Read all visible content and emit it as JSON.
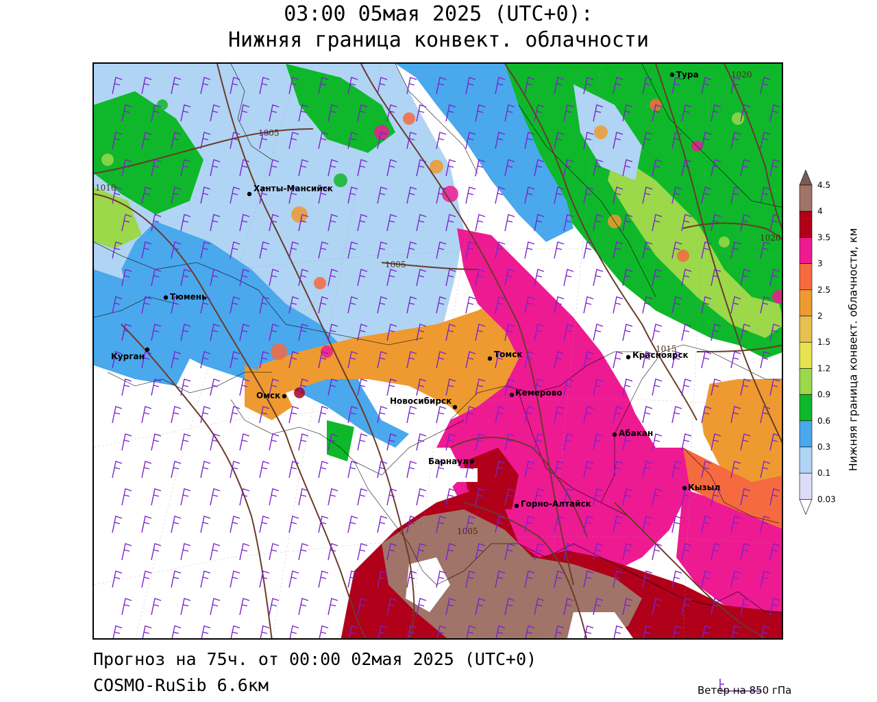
{
  "header": {
    "title_line1": "03:00 05мая 2025 (UTC+0):",
    "title_line2": "Нижняя граница конвект. облачности"
  },
  "footer": {
    "forecast": "Прогноз на 75ч. от 00:00 02мая 2025 (UTC+0)",
    "model": "COSMO-RuSib 6.6км",
    "wind_legend": "Ветер на 850 гПа"
  },
  "colorbar": {
    "label": "Нижняя граница конвект. облачности, км",
    "levels": [
      "0.03",
      "0.1",
      "0.3",
      "0.6",
      "0.9",
      "1.2",
      "1.5",
      "2",
      "2.5",
      "3",
      "3.5",
      "4",
      "4.5"
    ],
    "colors": [
      "#dcdcf8",
      "#b0d4f4",
      "#4aa8ec",
      "#0eb82a",
      "#9bd84a",
      "#e6e250",
      "#e6c050",
      "#ee9a30",
      "#f66a40",
      "#ee1a92",
      "#b0001a",
      "#a07468",
      "#7a5a52"
    ],
    "bottom_color": "#ffffff"
  },
  "map": {
    "cities": [
      {
        "name": "Тура",
        "lon_lat_label": "Тура"
      },
      {
        "name": "Ханты-Мансийск"
      },
      {
        "name": "Тюмень"
      },
      {
        "name": "Курган"
      },
      {
        "name": "Омск"
      },
      {
        "name": "Новосибирск"
      },
      {
        "name": "Томск"
      },
      {
        "name": "Кемерово"
      },
      {
        "name": "Красноярск"
      },
      {
        "name": "Абакан"
      },
      {
        "name": "Барнаул"
      },
      {
        "name": "Горно-Алтайск"
      },
      {
        "name": "Кызыл"
      }
    ],
    "isobar_labels": [
      "1005",
      "1010",
      "1005",
      "1015",
      "1020",
      "1020",
      "1005"
    ],
    "colors": {
      "isobar": "#6a3a2a",
      "border": "#000000",
      "wind": "#7a22cc"
    }
  }
}
